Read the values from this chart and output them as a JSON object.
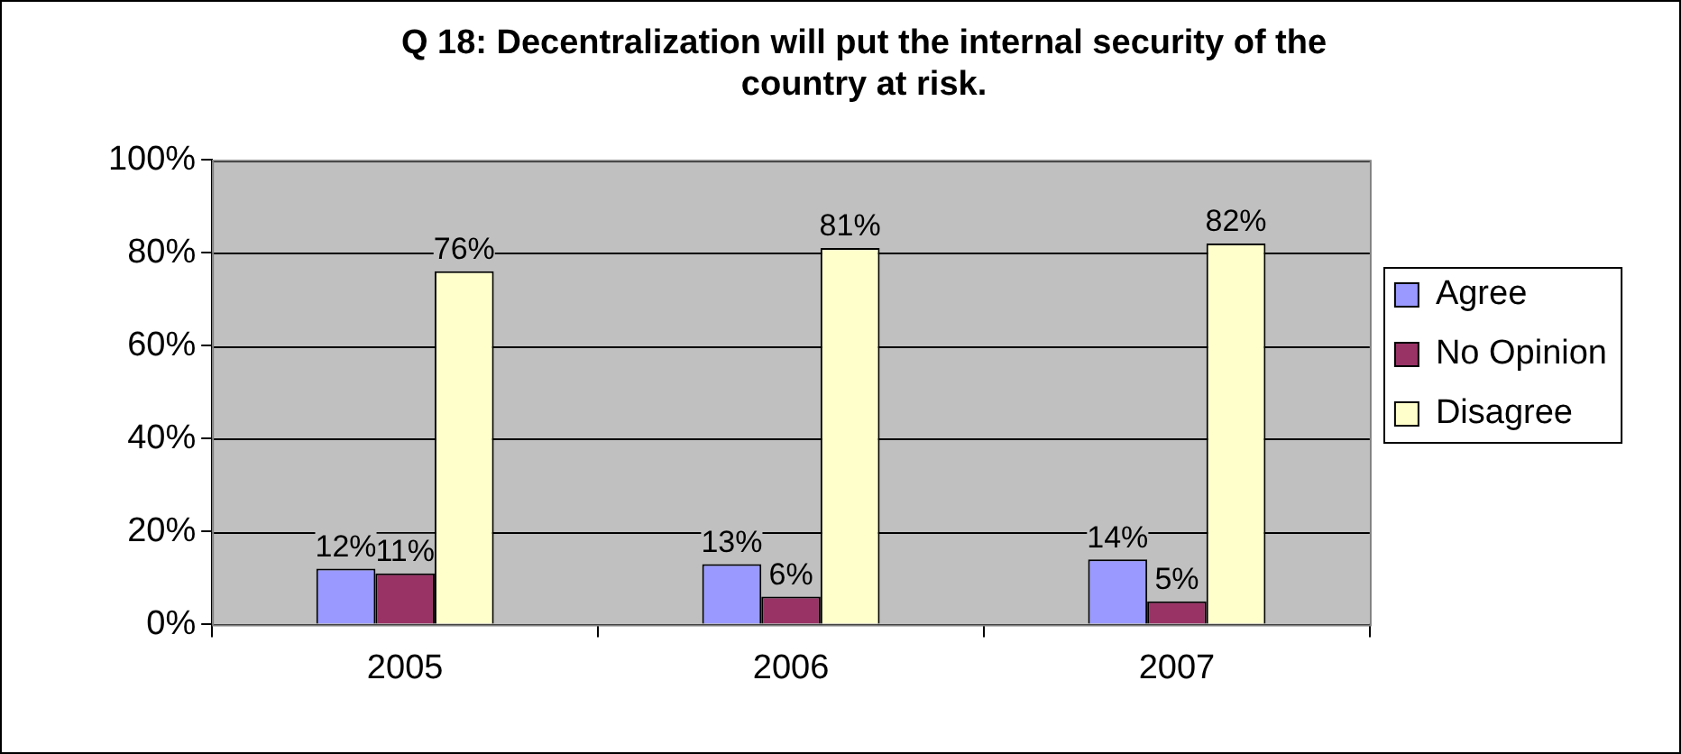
{
  "chart_data": {
    "type": "bar",
    "title": [
      "Q 18: Decentralization will put the internal security of the",
      "country at risk."
    ],
    "categories": [
      "2005",
      "2006",
      "2007"
    ],
    "series": [
      {
        "name": "Agree",
        "color": "#9999ff",
        "values": [
          12,
          13,
          14
        ],
        "value_labels": [
          "12%",
          "13%",
          "14%"
        ]
      },
      {
        "name": "No Opinion",
        "color": "#993366",
        "values": [
          11,
          6,
          5
        ],
        "value_labels": [
          "11%",
          "6%",
          "5%"
        ]
      },
      {
        "name": "Disagree",
        "color": "#ffffcc",
        "values": [
          76,
          81,
          82
        ],
        "value_labels": [
          "76%",
          "81%",
          "82%"
        ]
      }
    ],
    "ylim": [
      0,
      100
    ],
    "yticks": [
      {
        "value": 0,
        "label": "0%"
      },
      {
        "value": 20,
        "label": "20%"
      },
      {
        "value": 40,
        "label": "40%"
      },
      {
        "value": 60,
        "label": "60%"
      },
      {
        "value": 80,
        "label": "80%"
      },
      {
        "value": 100,
        "label": "100%"
      }
    ],
    "grid": "y",
    "legend": "right"
  }
}
